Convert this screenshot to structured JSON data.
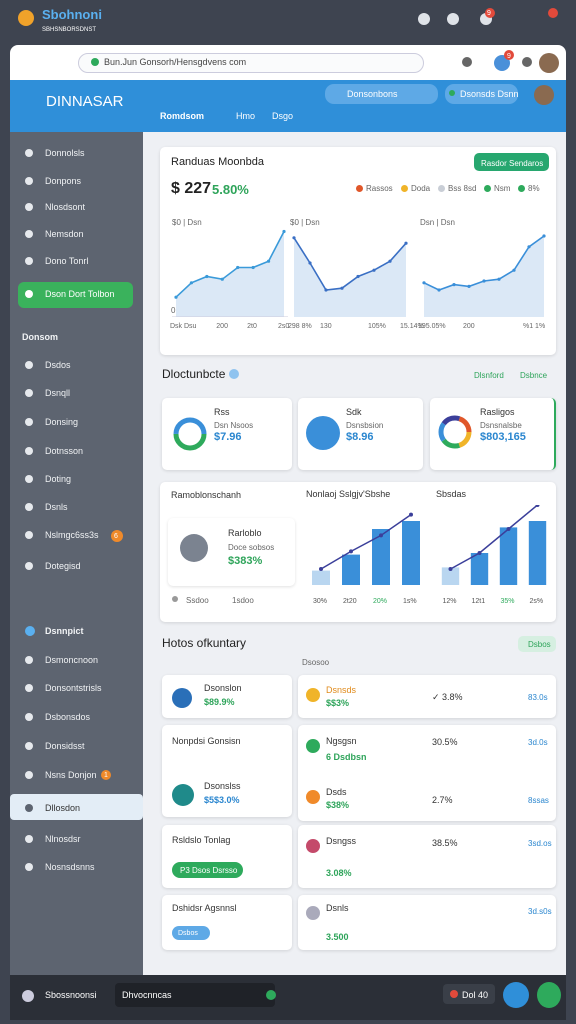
{
  "os_bar": {
    "app_name": "Sbohnoni",
    "app_subtitle": "SBHSNBORSDNST",
    "badge": "9"
  },
  "browser": {
    "url": "Bun.Jun Gonsorh/Hensgdvens com",
    "badge": "9"
  },
  "header": {
    "title": "DINNASAR",
    "search": "Donsonbons",
    "status": "Dsonsds Dsnn",
    "tabs": [
      "Romdsom",
      "Hmo",
      "Dsgo"
    ]
  },
  "sidebar": {
    "group_1": [
      "Donnolsls",
      "Donpons",
      "Nlosdsont",
      "Nemsdon",
      "Dono Tonrl"
    ],
    "action": "Dson Dort Tolbon",
    "section_1": "Donsom",
    "group_2": [
      "Dsdos",
      "Dsnqll",
      "Donsing",
      "Dotnsson",
      "Doting",
      "Dsnls",
      "Nslmgc6ss3s",
      "Dotegisd"
    ],
    "group_2_badge": "6",
    "section_2": "Dsnnpict",
    "group_3": [
      "Dsmoncnoon",
      "Donsontstrisls",
      "Dsbonsdos",
      "Donsidsst",
      "Nsns Donjon",
      "Dllosdon",
      "Nlnosdsr",
      "Nosnsdsnns"
    ],
    "group_3_badge": "1"
  },
  "overview": {
    "title": "Randuas Moonbda",
    "button": "Rasdor Sendaros",
    "kpi": "$ 227",
    "kpi_change": "5.80%",
    "legend": [
      {
        "name": "Rassos",
        "color": "#e0572a"
      },
      {
        "name": "Doda",
        "color": "#f0b429"
      },
      {
        "name": "Bss 8sd",
        "color": "#c9ced6"
      },
      {
        "name": "Nsm",
        "color": "#2eaa5c"
      },
      {
        "name": "8%",
        "color": "#2eaa5c"
      }
    ]
  },
  "chart_data": [
    {
      "type": "line",
      "title": "$0 | Dsn",
      "color": "#3a9ad9",
      "values": [
        22,
        38,
        45,
        42,
        55,
        55,
        62,
        95
      ],
      "categories": [
        "Dsk Dsu",
        null,
        null,
        "200",
        null,
        "2t0",
        null,
        "2s0"
      ],
      "ylim": [
        0,
        100
      ],
      "yticks": [
        0
      ]
    },
    {
      "type": "line",
      "title": "$0 | Dsn",
      "color": "#3a6fc4",
      "values": [
        88,
        60,
        30,
        32,
        45,
        52,
        62,
        82
      ],
      "categories": [
        "298 8%",
        null,
        "130",
        null,
        null,
        "105%",
        null,
        "15.14%"
      ],
      "ylim": [
        0,
        100
      ]
    },
    {
      "type": "line",
      "title": "Dsn | Dsn",
      "color": "#3a8fd9",
      "values": [
        38,
        30,
        36,
        34,
        40,
        42,
        52,
        78,
        90
      ],
      "categories": [
        "195.05%",
        null,
        null,
        "200",
        null,
        null,
        null,
        "%1 1%",
        null
      ],
      "ylim": [
        0,
        100
      ]
    },
    {
      "type": "bar",
      "title": "Nonlaoj Sslgjv'Sbshe",
      "color": "#3a8fd9",
      "line_color": "#3b3f9a",
      "categories": [
        "30%",
        "2t20",
        "20%",
        "1s%"
      ],
      "values": [
        18,
        38,
        70,
        80
      ],
      "line_values": [
        20,
        42,
        62,
        88
      ],
      "ylim": [
        0,
        100
      ]
    },
    {
      "type": "bar",
      "title": "Sbsdas",
      "color": "#3a8fd9",
      "line_color": "#3b3f9a",
      "categories": [
        "12%",
        "12t1",
        "35%",
        "2s%"
      ],
      "values": [
        22,
        40,
        72,
        80
      ],
      "line_values": [
        20,
        40,
        70,
        100
      ],
      "ylim": [
        0,
        100
      ]
    }
  ],
  "summary": {
    "title": "Dloctunbcte",
    "tags": [
      "Dlsnford",
      "Dsbnce"
    ],
    "cards": [
      {
        "name": "Rss",
        "label": "Dsn Nsoos",
        "value": "$7.96"
      },
      {
        "name": "Sdk",
        "label": "Dsnsbsion",
        "value": "$8.96"
      },
      {
        "name": "Rasligos",
        "label": "Dsnsnalsbe",
        "value": "$803,165"
      }
    ]
  },
  "breakdown": {
    "title": "Ramoblonschanh",
    "item_name": "Rarloblo",
    "item_label": "Doce sobsos",
    "item_value": "$383%",
    "footer": [
      "Ssdoo",
      "1sdoo"
    ]
  },
  "history": {
    "title": "Hotos ofkuntary",
    "button": "Dsbos",
    "subtitle": "Dsosoo",
    "left": [
      {
        "name": "Dsonslon",
        "value": "$89.9%"
      },
      {
        "name": "Nonpdsi Gonsisn"
      },
      {
        "name": "Dsonslss",
        "value": "$5$3.0%"
      },
      {
        "name": "Rsldslo Tonlag",
        "button": "P3 Dsos Dsrsso"
      },
      {
        "name": "Dshidsr Agsnnsl",
        "button": "Dsbos"
      }
    ],
    "right": [
      {
        "name": "Dsnsds",
        "value": "$$3%",
        "change": "✓ 3.8%",
        "amount": "83.0s"
      },
      {
        "name": "Ngsgsn",
        "value": "6 Dsdbsn",
        "change": "30.5%",
        "amount": "3d.0s"
      },
      {
        "name": "Dsds",
        "value": "$38%",
        "change": "2.7%",
        "amount": "8ssas"
      },
      {
        "name": "Dsngss",
        "value": "3.08%",
        "change": "38.5%",
        "amount": "3sd.os"
      },
      {
        "name": "Dsnls",
        "value": "3.500",
        "amount": "3d.s0s"
      }
    ]
  },
  "footer": {
    "left": "Sbossnoonsi",
    "field": "Dhvocnncas",
    "chip": "Dol 40"
  }
}
